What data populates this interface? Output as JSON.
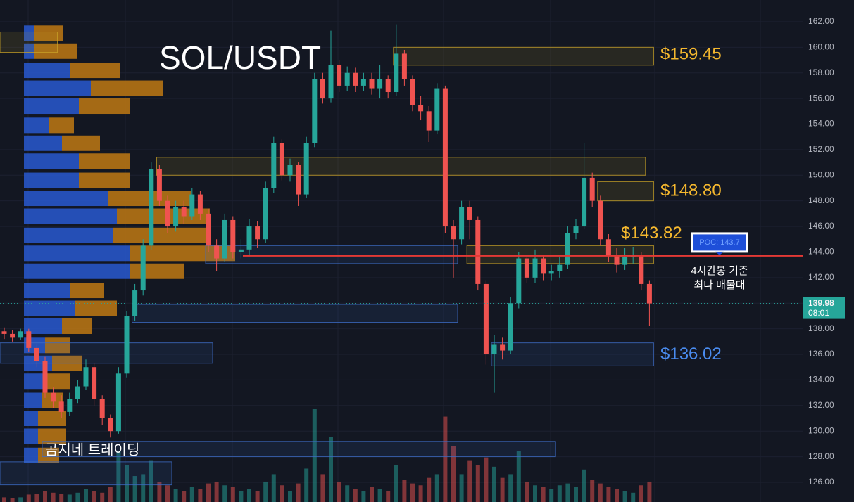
{
  "chart_data": {
    "type": "candlestick",
    "title": "SOL/USDT",
    "watermark": "곰지네 트레이딩",
    "annotation_lines": [
      "4시간봉 기준",
      "최다 매물대"
    ],
    "ylim": [
      124.46,
      163.7
    ],
    "yticks": [
      {
        "value": 126,
        "label": "126.00"
      },
      {
        "value": 128,
        "label": "128.00"
      },
      {
        "value": 130,
        "label": "130.00"
      },
      {
        "value": 132,
        "label": "132.00"
      },
      {
        "value": 134,
        "label": "134.00"
      },
      {
        "value": 136,
        "label": "136.00"
      },
      {
        "value": 138,
        "label": "138.00"
      },
      {
        "value": 140,
        "label": "140.00"
      },
      {
        "value": 142,
        "label": "142.00"
      },
      {
        "value": 144,
        "label": "144.00"
      },
      {
        "value": 146,
        "label": "146.00"
      },
      {
        "value": 148,
        "label": "148.00"
      },
      {
        "value": 150,
        "label": "150.00"
      },
      {
        "value": 152,
        "label": "152.00"
      },
      {
        "value": 154,
        "label": "154.00"
      },
      {
        "value": 156,
        "label": "156.00"
      },
      {
        "value": 158,
        "label": "158.00"
      },
      {
        "value": 160,
        "label": "160.00"
      },
      {
        "value": 162,
        "label": "162.00"
      }
    ],
    "grid": true,
    "up_color": "#26a69a",
    "down_color": "#ef5350",
    "open": [
      137.8,
      137.6,
      137.3,
      137.8,
      136.5,
      135.5,
      133.0,
      132.3,
      131.5,
      132.5,
      133.5,
      135.0,
      132.5,
      131.0,
      130.0,
      134.5,
      139.0,
      141.0,
      144.5,
      150.5,
      148.0,
      146.0,
      147.5,
      146.8,
      148.5,
      147.0,
      144.5,
      143.5,
      146.5,
      144.0,
      144.2,
      146.0,
      145.0,
      149.0,
      152.5,
      150.0,
      150.8,
      148.5,
      152.5,
      157.5,
      156.0,
      158.6,
      157.0,
      158.0,
      157.0,
      157.5,
      156.8,
      157.5,
      156.5,
      159.5,
      157.5,
      155.5,
      155.0,
      153.5,
      156.8,
      146.0,
      145.0,
      147.5,
      146.5,
      141.5,
      136.0,
      136.8,
      136.3,
      140.0,
      143.5,
      142.0,
      143.5,
      142.3,
      142.5,
      143.0,
      145.5,
      146.0,
      149.8,
      148.0,
      145.0,
      143.8,
      143.0,
      143.6,
      143.8,
      141.5
    ],
    "high": [
      138.1,
      137.9,
      138.0,
      138.0,
      136.8,
      135.8,
      133.4,
      132.8,
      133.0,
      134.0,
      135.6,
      135.3,
      132.8,
      131.3,
      135.0,
      139.4,
      141.5,
      145.0,
      151.0,
      150.8,
      148.4,
      148.0,
      148.0,
      149.0,
      148.8,
      147.4,
      145.0,
      147.0,
      146.8,
      145.0,
      146.6,
      146.4,
      149.5,
      153.0,
      152.8,
      151.3,
      151.0,
      153.0,
      158.0,
      158.0,
      161.3,
      159.0,
      158.5,
      158.4,
      158.0,
      158.0,
      158.6,
      157.8,
      161.8,
      159.8,
      157.8,
      156.2,
      155.4,
      157.2,
      157.0,
      146.5,
      148.0,
      148.0,
      146.8,
      141.8,
      137.5,
      137.3,
      140.5,
      144.0,
      143.8,
      144.2,
      143.8,
      143.0,
      143.6,
      146.0,
      146.6,
      152.5,
      150.2,
      148.4,
      145.4,
      144.3,
      144.3,
      144.4,
      144.0,
      141.8
    ],
    "low": [
      137.2,
      137.0,
      137.1,
      136.2,
      135.0,
      132.6,
      131.8,
      131.0,
      131.2,
      132.2,
      133.2,
      132.0,
      130.5,
      129.5,
      129.8,
      134.2,
      138.6,
      140.6,
      144.2,
      147.6,
      145.5,
      145.6,
      146.2,
      146.5,
      146.5,
      144.0,
      142.5,
      143.2,
      143.5,
      143.5,
      143.8,
      144.3,
      144.7,
      148.6,
      149.6,
      149.5,
      147.6,
      148.2,
      152.2,
      155.6,
      155.7,
      156.5,
      156.6,
      156.5,
      156.6,
      156.3,
      156.0,
      156.0,
      156.2,
      157.0,
      155.0,
      154.3,
      152.6,
      153.2,
      145.5,
      142.0,
      144.6,
      145.0,
      141.0,
      135.2,
      133.0,
      135.6,
      136.0,
      139.6,
      141.6,
      141.6,
      141.8,
      141.8,
      142.0,
      142.7,
      145.0,
      145.8,
      147.5,
      144.5,
      143.2,
      142.4,
      142.6,
      143.1,
      141.0,
      138.2
    ],
    "close": [
      137.6,
      137.3,
      137.8,
      136.5,
      135.5,
      133.0,
      132.3,
      131.5,
      132.5,
      133.5,
      135.0,
      132.5,
      131.0,
      130.0,
      134.5,
      139.0,
      141.0,
      144.5,
      150.5,
      148.0,
      146.0,
      147.5,
      146.8,
      148.5,
      147.0,
      144.5,
      143.5,
      146.5,
      144.0,
      144.2,
      146.0,
      145.0,
      149.0,
      152.5,
      150.0,
      150.8,
      148.5,
      152.5,
      157.5,
      156.0,
      158.6,
      157.0,
      158.0,
      157.0,
      157.5,
      156.8,
      157.5,
      156.5,
      159.5,
      157.5,
      155.5,
      155.0,
      153.5,
      156.8,
      146.0,
      145.0,
      147.5,
      146.5,
      141.5,
      136.0,
      136.8,
      136.3,
      140.0,
      143.5,
      142.0,
      143.5,
      142.3,
      142.5,
      143.0,
      145.5,
      146.0,
      149.8,
      148.0,
      145.0,
      143.8,
      143.0,
      143.6,
      143.8,
      141.5,
      139.98
    ],
    "volume": [
      5,
      4,
      5,
      8,
      9,
      12,
      10,
      9,
      8,
      10,
      14,
      12,
      10,
      16,
      55,
      40,
      28,
      30,
      45,
      22,
      18,
      14,
      12,
      16,
      14,
      20,
      22,
      18,
      16,
      12,
      14,
      12,
      22,
      30,
      18,
      12,
      20,
      36,
      100,
      30,
      70,
      22,
      18,
      14,
      12,
      16,
      14,
      12,
      40,
      24,
      20,
      18,
      26,
      30,
      92,
      60,
      30,
      45,
      40,
      48,
      38,
      26,
      30,
      55,
      22,
      18,
      16,
      14,
      18,
      20,
      16,
      35,
      24,
      20,
      16,
      14,
      12,
      10,
      18,
      22
    ],
    "volume_profile": {
      "prices": [
        161.1,
        159.7,
        158.2,
        156.8,
        155.4,
        153.9,
        152.5,
        151.1,
        149.6,
        148.2,
        146.8,
        145.3,
        143.9,
        142.5,
        141.0,
        139.6,
        138.2,
        136.7,
        135.3,
        133.9,
        132.4,
        131.0,
        129.6,
        128.1
      ],
      "buy": [
        15,
        15,
        65,
        95,
        78,
        35,
        54,
        78,
        78,
        120,
        132,
        126,
        150,
        150,
        66,
        72,
        54,
        30,
        40,
        30,
        25,
        20,
        20,
        20
      ],
      "sell": [
        40,
        60,
        72,
        102,
        72,
        36,
        54,
        72,
        72,
        117,
        132,
        138,
        150,
        78,
        48,
        60,
        42,
        36,
        42,
        36,
        30,
        40,
        40,
        30
      ],
      "buy_color": "#2a5bd7",
      "sell_color": "#c67c12"
    },
    "zones": [
      {
        "start": 0,
        "end": 6,
        "low": 159.6,
        "high": 161.2,
        "color": "#c9a227"
      },
      {
        "start": 48,
        "end": 79,
        "low": 158.6,
        "high": 160.0,
        "color": "#c9a227"
      },
      {
        "start": 19,
        "end": 78,
        "low": 150.0,
        "high": 151.4,
        "color": "#c9a227"
      },
      {
        "start": 73,
        "end": 79,
        "low": 148.0,
        "high": 149.5,
        "color": "#c9a227"
      },
      {
        "start": 25,
        "end": 55,
        "low": 143.1,
        "high": 144.5,
        "color": "#3d6cc4"
      },
      {
        "start": 57,
        "end": 79,
        "low": 143.1,
        "high": 144.5,
        "color": "#c9a227"
      },
      {
        "start": 16,
        "end": 55,
        "low": 138.5,
        "high": 139.9,
        "color": "#3d6cc4"
      },
      {
        "start": 0,
        "end": 25,
        "low": 135.3,
        "high": 136.9,
        "color": "#3d6cc4"
      },
      {
        "start": 60,
        "end": 79,
        "low": 135.1,
        "high": 136.9,
        "color": "#3d6cc4"
      },
      {
        "start": 5,
        "end": 67,
        "low": 128.0,
        "high": 129.2,
        "color": "#3d6cc4"
      },
      {
        "start": 0,
        "end": 20,
        "low": 125.8,
        "high": 127.6,
        "color": "#3d6cc4"
      }
    ],
    "levels": [
      {
        "value": 159.45,
        "label": "$159.45",
        "color": "#f5b82e"
      },
      {
        "value": 148.8,
        "label": "$148.80",
        "color": "#f5b82e"
      },
      {
        "value": 143.82,
        "label": "$143.82",
        "color": "#f5b82e"
      },
      {
        "value": 136.02,
        "label": "$136.02",
        "color": "#4a8cf0"
      }
    ],
    "poc": {
      "value": 143.7,
      "label": "POC: 143.7",
      "color": "#e53935"
    },
    "last_price": 139.98,
    "countdown": "08:01"
  }
}
